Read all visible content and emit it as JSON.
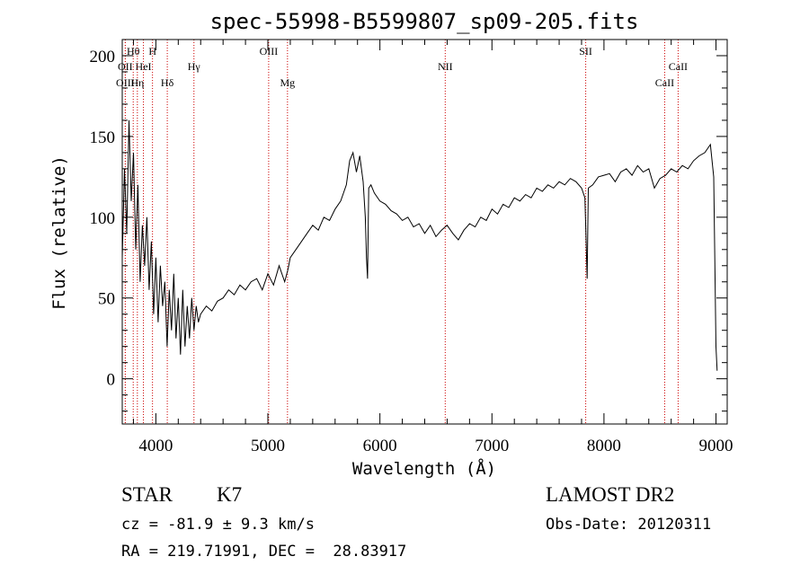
{
  "chart_data": {
    "type": "line",
    "title": "spec-55998-B5599807_sp09-205.fits",
    "xlabel": "Wavelength (Å)",
    "ylabel": "Flux (relative)",
    "xlim": [
      3700,
      9100
    ],
    "ylim": [
      -28,
      210
    ],
    "xticks": [
      4000,
      5000,
      6000,
      7000,
      8000,
      9000
    ],
    "yticks": [
      0,
      50,
      100,
      150,
      200
    ],
    "spectrum": {
      "x": [
        3700,
        3720,
        3740,
        3760,
        3780,
        3800,
        3820,
        3840,
        3860,
        3880,
        3900,
        3920,
        3940,
        3960,
        3980,
        4000,
        4020,
        4040,
        4060,
        4080,
        4100,
        4120,
        4140,
        4160,
        4180,
        4200,
        4220,
        4240,
        4260,
        4280,
        4300,
        4320,
        4340,
        4360,
        4380,
        4400,
        4450,
        4500,
        4550,
        4600,
        4650,
        4700,
        4750,
        4800,
        4850,
        4900,
        4950,
        5000,
        5050,
        5100,
        5150,
        5180,
        5200,
        5250,
        5300,
        5350,
        5400,
        5450,
        5500,
        5550,
        5600,
        5650,
        5700,
        5730,
        5760,
        5790,
        5820,
        5850,
        5870,
        5880,
        5890,
        5900,
        5920,
        5950,
        6000,
        6050,
        6100,
        6150,
        6200,
        6250,
        6300,
        6350,
        6400,
        6450,
        6500,
        6550,
        6600,
        6650,
        6700,
        6750,
        6800,
        6850,
        6900,
        6950,
        7000,
        7050,
        7100,
        7150,
        7200,
        7250,
        7300,
        7350,
        7400,
        7450,
        7500,
        7550,
        7600,
        7650,
        7700,
        7750,
        7800,
        7830,
        7850,
        7860,
        7900,
        7950,
        8000,
        8050,
        8100,
        8150,
        8200,
        8250,
        8300,
        8350,
        8400,
        8450,
        8500,
        8550,
        8600,
        8650,
        8700,
        8750,
        8800,
        8850,
        8900,
        8950,
        8980,
        9000,
        9010
      ],
      "y": [
        75,
        130,
        90,
        160,
        110,
        140,
        80,
        120,
        60,
        95,
        70,
        100,
        55,
        85,
        40,
        75,
        35,
        70,
        45,
        60,
        20,
        55,
        30,
        65,
        25,
        50,
        15,
        55,
        20,
        45,
        25,
        50,
        30,
        45,
        35,
        40,
        45,
        42,
        48,
        50,
        55,
        52,
        58,
        55,
        60,
        62,
        55,
        65,
        58,
        70,
        60,
        68,
        75,
        80,
        85,
        90,
        95,
        92,
        100,
        98,
        105,
        110,
        120,
        135,
        140,
        128,
        138,
        122,
        100,
        75,
        62,
        118,
        120,
        115,
        110,
        108,
        104,
        102,
        98,
        100,
        94,
        96,
        90,
        95,
        88,
        92,
        95,
        90,
        86,
        92,
        96,
        94,
        100,
        98,
        105,
        102,
        108,
        106,
        112,
        110,
        114,
        112,
        118,
        116,
        120,
        118,
        122,
        120,
        124,
        122,
        118,
        112,
        62,
        118,
        120,
        125,
        126,
        127,
        122,
        128,
        130,
        126,
        132,
        128,
        130,
        118,
        124,
        126,
        130,
        128,
        132,
        130,
        135,
        138,
        140,
        145,
        125,
        20,
        5
      ]
    },
    "spectral_lines": [
      {
        "label": "Hθ",
        "x": 3798,
        "row": 1
      },
      {
        "label": "H",
        "x": 3970,
        "row": 1
      },
      {
        "label": "OIII",
        "x": 5007,
        "row": 1
      },
      {
        "label": "SII",
        "x": 7837,
        "row": 1
      },
      {
        "label": "OII",
        "x": 3727,
        "row": 2
      },
      {
        "label": "HeI",
        "x": 3889,
        "row": 2
      },
      {
        "label": "Hγ",
        "x": 4340,
        "row": 2
      },
      {
        "label": "NII",
        "x": 6583,
        "row": 2
      },
      {
        "label": "CaII",
        "x": 8662,
        "row": 2
      },
      {
        "label": "OIII",
        "x": 3727,
        "row": 3
      },
      {
        "label": "Hη",
        "x": 3835,
        "row": 3
      },
      {
        "label": "Hδ",
        "x": 4102,
        "row": 3
      },
      {
        "label": "Mg",
        "x": 5175,
        "row": 3
      },
      {
        "label": "CaII",
        "x": 8542,
        "row": 3
      }
    ],
    "line_marker_color": "#cc0000",
    "grid": false
  },
  "info": {
    "object_class": "STAR",
    "subclass": "K7",
    "survey": "LAMOST DR2",
    "redshift": "cz = -81.9 ± 9.3 km/s",
    "obs_date": "Obs-Date: 20120311",
    "coords": "RA = 219.71991, DEC =  28.83917"
  }
}
